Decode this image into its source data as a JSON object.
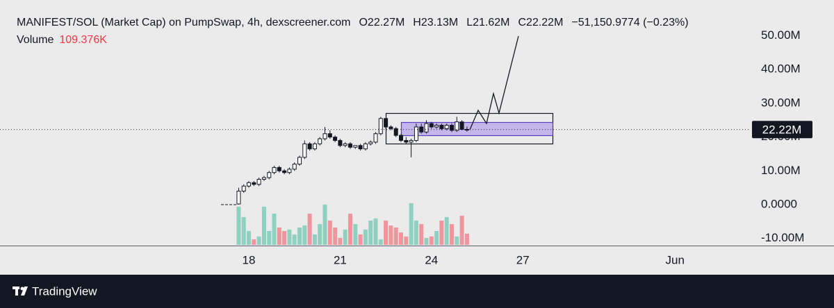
{
  "chart_data": {
    "type": "candlestick",
    "title": "MANIFEST/SOL (Market Cap) on PumpSwap, 4h, dexscreener.com",
    "ohlc_legend": [
      "O22.27M",
      "H23.13M",
      "L21.62M",
      "C22.22M",
      "−51,150.9774 (−0.23%)"
    ],
    "x": [
      17.667,
      17.833,
      18,
      18.167,
      18.333,
      18.5,
      18.667,
      18.833,
      19,
      19.167,
      19.333,
      19.5,
      19.667,
      19.833,
      20,
      20.167,
      20.333,
      20.5,
      20.667,
      20.833,
      21,
      21.167,
      21.333,
      21.5,
      21.667,
      21.833,
      22,
      22.167,
      22.333,
      22.5,
      22.667,
      22.833,
      23,
      23.167,
      23.333,
      23.5,
      23.667,
      23.833,
      24,
      24.167,
      24.333,
      24.5,
      24.667,
      24.833,
      25,
      25.167
    ],
    "open": [
      0.2,
      4,
      5.5,
      6.5,
      6,
      7.5,
      8,
      9.5,
      11,
      10,
      9.5,
      10.5,
      12,
      14,
      18,
      16.5,
      18,
      19.5,
      21,
      20,
      19,
      17.5,
      18,
      17,
      17.5,
      16.5,
      18,
      18.5,
      21,
      25.5,
      23,
      22.5,
      20.5,
      19,
      18.5,
      19,
      23,
      21.5,
      24,
      23,
      23.5,
      22.5,
      23.5,
      22,
      24.5,
      22.27
    ],
    "high": [
      5,
      6,
      7,
      7,
      8,
      8.5,
      10,
      11.5,
      11.5,
      10.5,
      11,
      12.5,
      14.5,
      19,
      18.5,
      18.5,
      20,
      23,
      22,
      20.5,
      19.5,
      18.5,
      18.5,
      17.5,
      18,
      18.5,
      19,
      21.5,
      26,
      25.5,
      23.5,
      23,
      21,
      20,
      19.5,
      24,
      24,
      25,
      24.5,
      24,
      24,
      24,
      24,
      26,
      25,
      23.13
    ],
    "low": [
      0,
      3.5,
      5,
      5.5,
      5.5,
      7,
      7.5,
      9,
      9.5,
      9,
      9,
      10,
      11.5,
      13.5,
      16,
      16,
      17.5,
      19,
      19.5,
      18.5,
      17,
      17,
      16.5,
      16.5,
      16,
      16,
      17.5,
      18,
      20.5,
      22.5,
      22,
      20,
      18.5,
      18,
      14,
      18.5,
      21,
      21,
      22.5,
      22.5,
      22,
      22,
      21.5,
      21.5,
      22,
      21.62
    ],
    "close": [
      4,
      5.5,
      6.5,
      6,
      7.5,
      8,
      9.5,
      11,
      10,
      9.5,
      10.5,
      12,
      14,
      18,
      16.5,
      18,
      19.5,
      21,
      20,
      19,
      17.5,
      18,
      17,
      17.5,
      16.5,
      18,
      18.5,
      21,
      25.5,
      23,
      22.5,
      20.5,
      19,
      18.5,
      19,
      23,
      21.5,
      24,
      23,
      23.5,
      22.5,
      23.5,
      22,
      24.5,
      22.27,
      22.22
    ],
    "up_color": "#ffffff",
    "down_color": "#131722",
    "volume": {
      "name": "Volume",
      "value_label": "109.376K",
      "ylim": [
        0,
        700
      ],
      "up_color": "#8fd0c1",
      "down_color": "#f0949d",
      "values": [
        374,
        272,
        136,
        54,
        82,
        374,
        136,
        306,
        170,
        136,
        150,
        102,
        170,
        190,
        306,
        102,
        204,
        395,
        238,
        170,
        68,
        150,
        306,
        204,
        102,
        150,
        238,
        259,
        54,
        238,
        190,
        170,
        122,
        82,
        408,
        238,
        204,
        68,
        82,
        136,
        238,
        272,
        204,
        82,
        286,
        109.376
      ]
    },
    "last_price_label": "22.22M",
    "xlim": [
      9.826,
      34.484
    ],
    "xticks": [
      18,
      21,
      24,
      27,
      {
        "value": 32,
        "label": "Jun"
      }
    ],
    "ylim": [
      -12.32,
      60.57
    ],
    "yticks": [
      {
        "value": 50,
        "label": "50.00M"
      },
      {
        "value": 40,
        "label": "40.00M"
      },
      {
        "value": 30,
        "label": "30.00M"
      },
      {
        "value": 20,
        "label": "20.00M"
      },
      {
        "value": 10,
        "label": "10.00M"
      },
      {
        "value": 0,
        "label": "0.0000"
      },
      {
        "value": -10,
        "label": "-10.00M"
      }
    ]
  }
}
